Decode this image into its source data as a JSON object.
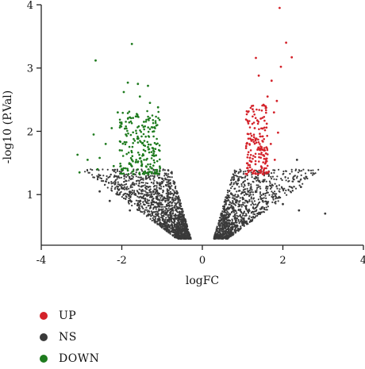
{
  "chart_data": {
    "type": "scatter",
    "title": "",
    "xlabel": "logFC",
    "ylabel": "-log10 (P.Val)",
    "xlim": [
      -4,
      4
    ],
    "ylim": [
      0.2,
      4
    ],
    "xticks": [
      -4,
      -2,
      0,
      2,
      4
    ],
    "yticks": [
      1,
      2,
      3,
      4
    ],
    "x_tick_labels": [
      "-4",
      "-2",
      "0",
      "2",
      "4"
    ],
    "y_tick_labels": [
      "1",
      "2",
      "3",
      "4"
    ],
    "grid": false,
    "legend_position": "bottom-left",
    "series": [
      {
        "name": "UP",
        "color": "#d4222a",
        "points": [
          [
            1.92,
            3.95
          ],
          [
            2.08,
            3.4
          ],
          [
            2.22,
            3.17
          ],
          [
            1.33,
            3.16
          ],
          [
            1.95,
            3.02
          ],
          [
            1.4,
            2.88
          ],
          [
            1.72,
            2.8
          ],
          [
            1.62,
            2.55
          ],
          [
            1.85,
            2.48
          ],
          [
            1.52,
            2.42
          ],
          [
            1.25,
            2.35
          ],
          [
            1.78,
            2.3
          ],
          [
            1.45,
            2.2
          ],
          [
            1.6,
            2.12
          ],
          [
            1.3,
            2.05
          ],
          [
            1.88,
            1.98
          ],
          [
            1.5,
            1.92
          ],
          [
            1.22,
            1.85
          ],
          [
            1.7,
            1.8
          ],
          [
            1.38,
            1.72
          ],
          [
            1.58,
            1.65
          ],
          [
            1.18,
            1.58
          ],
          [
            1.8,
            1.55
          ],
          [
            1.32,
            1.48
          ],
          [
            1.48,
            1.42
          ],
          [
            1.15,
            1.38
          ],
          [
            1.65,
            1.36
          ],
          [
            1.25,
            1.34
          ]
        ]
      },
      {
        "name": "NS",
        "color": "#3a3a3a",
        "points": [
          [
            -2.55,
            1.05
          ],
          [
            -2.3,
            0.9
          ],
          [
            -2.0,
            1.1
          ],
          [
            -1.8,
            0.75
          ],
          [
            -1.5,
            0.95
          ],
          [
            -1.2,
            0.6
          ],
          [
            -0.9,
            0.7
          ],
          [
            -0.6,
            0.45
          ],
          [
            -0.4,
            0.35
          ],
          [
            -1.0,
            1.2
          ],
          [
            -1.4,
            1.25
          ],
          [
            0.4,
            0.35
          ],
          [
            0.6,
            0.5
          ],
          [
            0.8,
            0.75
          ],
          [
            1.0,
            0.95
          ],
          [
            1.2,
            1.1
          ],
          [
            0.9,
            1.25
          ],
          [
            1.5,
            0.9
          ],
          [
            2.0,
            0.85
          ],
          [
            2.4,
            0.75
          ],
          [
            3.05,
            0.7
          ],
          [
            2.45,
            1.12
          ],
          [
            2.35,
            1.55
          ]
        ]
      },
      {
        "name": "DOWN",
        "color": "#1e7b1e",
        "points": [
          [
            -1.75,
            3.38
          ],
          [
            -2.65,
            3.12
          ],
          [
            -1.85,
            2.77
          ],
          [
            -1.6,
            2.75
          ],
          [
            -1.35,
            2.72
          ],
          [
            -1.95,
            2.62
          ],
          [
            -1.55,
            2.55
          ],
          [
            -1.3,
            2.45
          ],
          [
            -1.1,
            2.38
          ],
          [
            -2.1,
            2.3
          ],
          [
            -1.8,
            2.22
          ],
          [
            -1.45,
            2.15
          ],
          [
            -2.25,
            2.05
          ],
          [
            -1.2,
            2.0
          ],
          [
            -1.9,
            1.95
          ],
          [
            -2.7,
            1.95
          ],
          [
            -1.6,
            1.88
          ],
          [
            -2.4,
            1.8
          ],
          [
            -1.35,
            1.75
          ],
          [
            -2.05,
            1.7
          ],
          [
            -1.15,
            1.62
          ],
          [
            -2.55,
            1.58
          ],
          [
            -1.75,
            1.55
          ],
          [
            -3.1,
            1.63
          ],
          [
            -2.85,
            1.55
          ],
          [
            -1.5,
            1.48
          ],
          [
            -2.2,
            1.45
          ],
          [
            -1.05,
            1.42
          ],
          [
            -3.05,
            1.35
          ],
          [
            -1.85,
            1.38
          ],
          [
            -1.3,
            1.36
          ],
          [
            -2.6,
            1.4
          ]
        ]
      }
    ]
  }
}
